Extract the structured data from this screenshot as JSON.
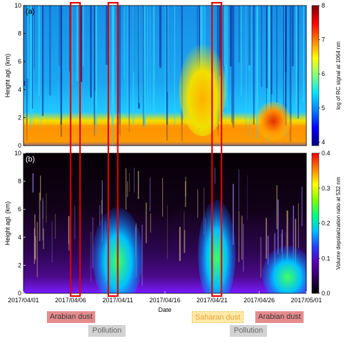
{
  "chart_data": [
    {
      "type": "heatmap",
      "panel_label": "(a)",
      "ylabel": "Height agl. (km)",
      "ylim": [
        0,
        10
      ],
      "yticks": [
        "0",
        "2",
        "4",
        "6",
        "8",
        "10"
      ],
      "colorbar": {
        "label": "log of RC signal at 1064 nm",
        "range": [
          3.9,
          8
        ],
        "ticks": [
          "4",
          "5",
          "6",
          "7",
          "8"
        ],
        "colormap": [
          "#00007f",
          "#0000ff",
          "#0080ff",
          "#00e5ff",
          "#7fff7f",
          "#ffff00",
          "#ff8000",
          "#ff0000",
          "#7f0000"
        ]
      },
      "features": [
        {
          "name": "boundary layer",
          "x_range": [
            "2017-04-01",
            "2017-05-01"
          ],
          "height_km": [
            0,
            1.5
          ]
        },
        {
          "name": "elevated layer",
          "x_range": [
            "2017-04-18",
            "2017-04-22"
          ],
          "height_km": [
            1,
            7
          ]
        },
        {
          "name": "elevated layer",
          "x_range": [
            "2017-04-26",
            "2017-04-29"
          ],
          "height_km": [
            0.5,
            3
          ]
        }
      ]
    },
    {
      "type": "heatmap",
      "panel_label": "(b)",
      "xlabel": "Date",
      "ylabel": "Height agl. (km)",
      "ylim": [
        0,
        10
      ],
      "yticks": [
        "0",
        "2",
        "4",
        "6",
        "8",
        "10"
      ],
      "xticks": [
        "2017/04/01",
        "2017/04/06",
        "2017/04/11",
        "2017/04/16",
        "2017/04/21",
        "2017/04/26",
        "2017/05/01"
      ],
      "x_range": [
        "2017-04-01",
        "2017-05-01"
      ],
      "colorbar": {
        "label": "Volume depolarization ratio at 532 nm",
        "range": [
          0,
          0.4
        ],
        "ticks": [
          "0.0",
          "0.1",
          "0.2",
          "0.3",
          "0.4"
        ],
        "colormap": [
          "#000000",
          "#30005a",
          "#5a00b4",
          "#2040ff",
          "#00c0ff",
          "#00ff80",
          "#80ff00",
          "#ffff00",
          "#ff8000",
          "#ff0000"
        ]
      },
      "features": [
        {
          "name": "depolarizing layer",
          "x_range": [
            "2017-04-09",
            "2017-04-13"
          ],
          "height_km": [
            0,
            6
          ],
          "value": 0.15
        },
        {
          "name": "depolarizing layer",
          "x_range": [
            "2017-04-20",
            "2017-04-23"
          ],
          "height_km": [
            0,
            6.5
          ],
          "value": 0.22
        },
        {
          "name": "depolarizing layer",
          "x_range": [
            "2017-04-27",
            "2017-05-01"
          ],
          "height_km": [
            0,
            3.5
          ],
          "value": 0.25
        }
      ]
    }
  ],
  "highlights": [
    {
      "x_range": [
        "2017-04-06",
        "2017-04-07"
      ]
    },
    {
      "x_range": [
        "2017-04-10",
        "2017-04-11"
      ]
    },
    {
      "x_range": [
        "2017-04-21",
        "2017-04-22"
      ]
    }
  ],
  "event_labels": [
    {
      "label": "Arabian dust",
      "kind": "arabian"
    },
    {
      "label": "Pollution",
      "kind": "pollution"
    },
    {
      "label": "Saharan dust",
      "kind": "saharan"
    },
    {
      "label": "Pollution",
      "kind": "pollution"
    },
    {
      "label": "Arabian dust",
      "kind": "arabian"
    }
  ],
  "colors": {
    "highlight": "#e00000"
  }
}
